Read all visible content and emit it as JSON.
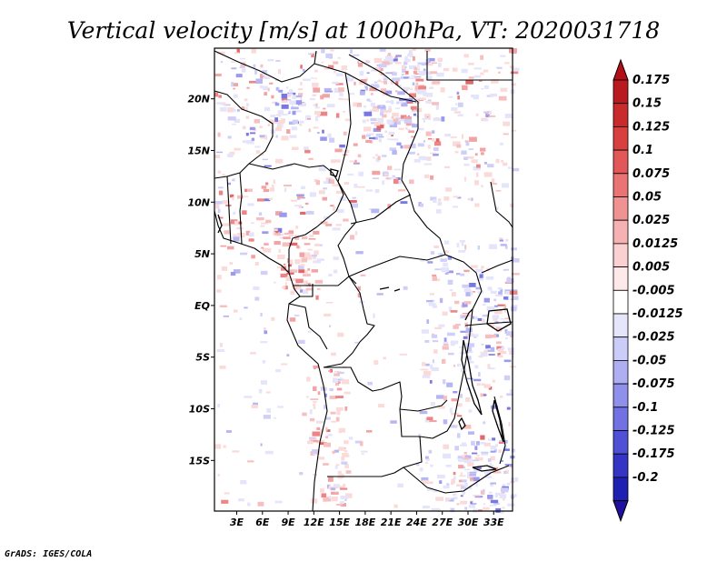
{
  "title": "Vertical velocity [m/s] at 1000hPa, VT: 2020031718",
  "credit": "GrADS: IGES/COLA",
  "map": {
    "lat_labels": [
      {
        "lat": 20,
        "text": "20N"
      },
      {
        "lat": 15,
        "text": "15N"
      },
      {
        "lat": 10,
        "text": "10N"
      },
      {
        "lat": 5,
        "text": "5N"
      },
      {
        "lat": 0,
        "text": "EQ"
      },
      {
        "lat": -5,
        "text": "5S"
      },
      {
        "lat": -10,
        "text": "10S"
      },
      {
        "lat": -15,
        "text": "15S"
      }
    ],
    "lon_labels": [
      {
        "lon": 3,
        "text": "3E"
      },
      {
        "lon": 6,
        "text": "6E"
      },
      {
        "lon": 9,
        "text": "9E"
      },
      {
        "lon": 12,
        "text": "12E"
      },
      {
        "lon": 15,
        "text": "15E"
      },
      {
        "lon": 18,
        "text": "18E"
      },
      {
        "lon": 21,
        "text": "21E"
      },
      {
        "lon": 24,
        "text": "24E"
      },
      {
        "lon": 27,
        "text": "27E"
      },
      {
        "lon": 30,
        "text": "30E"
      },
      {
        "lon": 33,
        "text": "33E"
      }
    ],
    "lon_range": [
      0.4,
      35.2
    ],
    "lat_range": [
      -19.9,
      24.9
    ]
  },
  "colorbar": {
    "top_color": "#b40f18",
    "bottom_color": "#2010a0",
    "classes": [
      {
        "label": "0.175",
        "color": "#b91a1f"
      },
      {
        "label": "0.15",
        "color": "#c92a2c"
      },
      {
        "label": "0.125",
        "color": "#d84040"
      },
      {
        "label": "0.1",
        "color": "#e25858"
      },
      {
        "label": "0.075",
        "color": "#ea7474"
      },
      {
        "label": "0.05",
        "color": "#f19292"
      },
      {
        "label": "0.025",
        "color": "#f6b2b2"
      },
      {
        "label": "0.0125",
        "color": "#fad0d0"
      },
      {
        "label": "0.005",
        "color": "#fde9e9"
      },
      {
        "label": "-0.005",
        "color": "#ffffff"
      },
      {
        "label": "-0.0125",
        "color": "#e6e6fb"
      },
      {
        "label": "-0.025",
        "color": "#ccccf8"
      },
      {
        "label": "-0.05",
        "color": "#aeaef3"
      },
      {
        "label": "-0.075",
        "color": "#8f8fec"
      },
      {
        "label": "-0.1",
        "color": "#7171e3"
      },
      {
        "label": "-0.125",
        "color": "#5050d6"
      },
      {
        "label": "-0.175",
        "color": "#3434c5"
      },
      {
        "label": "-0.2",
        "color": "#1f1fb1"
      }
    ]
  }
}
